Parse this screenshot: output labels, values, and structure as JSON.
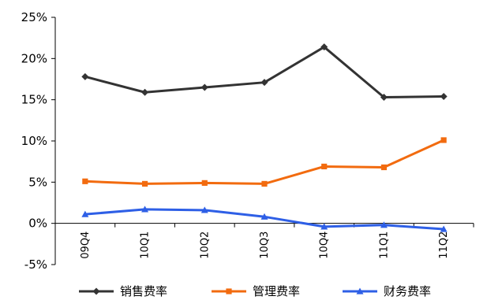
{
  "chart_data": {
    "type": "line",
    "title": "",
    "xlabel": "",
    "ylabel": "",
    "categories": [
      "09Q4",
      "10Q1",
      "10Q2",
      "10Q3",
      "10Q4",
      "11Q1",
      "11Q2"
    ],
    "ylim": [
      -5,
      25
    ],
    "yticks": [
      -5,
      0,
      5,
      10,
      15,
      20,
      25
    ],
    "ytick_labels": [
      "-5%",
      "0%",
      "5%",
      "10%",
      "15%",
      "20%",
      "25%"
    ],
    "grid": false,
    "legend_position": "bottom",
    "series": [
      {
        "name": "销售费率",
        "color": "#333333",
        "marker": "diamond",
        "values": [
          17.8,
          15.9,
          16.5,
          17.1,
          21.4,
          15.3,
          15.4
        ]
      },
      {
        "name": "管理费率",
        "color": "#f26b0f",
        "marker": "square",
        "values": [
          5.1,
          4.8,
          4.9,
          4.8,
          6.9,
          6.8,
          10.1
        ]
      },
      {
        "name": "财务费率",
        "color": "#2e5fe6",
        "marker": "triangle",
        "values": [
          1.1,
          1.7,
          1.6,
          0.8,
          -0.4,
          -0.2,
          -0.7
        ]
      }
    ]
  }
}
